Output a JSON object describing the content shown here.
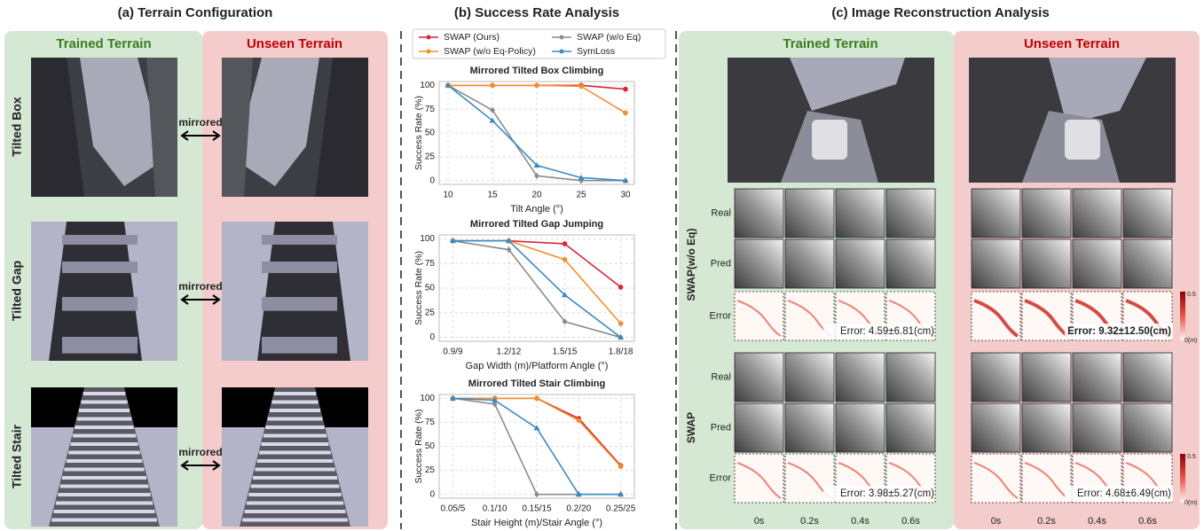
{
  "panel_a": {
    "title": "(a) Terrain Configuration",
    "trained": "Trained Terrain",
    "unseen": "Unseen Terrain",
    "rows": [
      "Tilted Box",
      "Tilted Gap",
      "Tilted Stair"
    ],
    "arrow_label": "mirrored"
  },
  "panel_b": {
    "title": "(b) Success Rate Analysis"
  },
  "chart_data": [
    {
      "type": "line",
      "title": "Mirrored Tilted Box Climbing",
      "x_label": "Tilt Angle (°)",
      "y_label": "Success Rate (%)",
      "x": [
        10,
        15,
        20,
        25,
        30
      ],
      "xlim": [
        9,
        31
      ],
      "xticks": [
        10,
        15,
        20,
        25,
        30
      ],
      "ylim": [
        -4,
        104
      ],
      "yticks": [
        0,
        25,
        50,
        75,
        100
      ],
      "grid": true,
      "series": [
        {
          "name": "SWAP (Ours)",
          "color": "#d62738",
          "marker": "circle",
          "values": [
            100,
            100,
            100,
            100,
            96
          ]
        },
        {
          "name": "SWAP (w/o Eq-Policy)",
          "color": "#f28e2b",
          "marker": "circle",
          "values": [
            100,
            100,
            100,
            99,
            71
          ]
        },
        {
          "name": "SWAP (w/o Eq)",
          "color": "#8c8c8c",
          "marker": "diamond",
          "values": [
            100,
            74,
            5,
            0,
            0
          ]
        },
        {
          "name": "SymLoss",
          "color": "#3a8bc2",
          "marker": "triangle",
          "values": [
            100,
            63,
            16,
            3,
            0
          ]
        }
      ]
    },
    {
      "type": "line",
      "title": "Mirrored Tilted Gap Jumping",
      "x_label": "Gap Width (m)/Platform Angle (°)",
      "y_label": "Success Rate (%)",
      "categories": [
        "0.9/9",
        "1.2/12",
        "1.5/15",
        "1.8/18"
      ],
      "ylim": [
        -4,
        104
      ],
      "yticks": [
        0,
        25,
        50,
        75,
        100
      ],
      "grid": true,
      "series": [
        {
          "name": "SWAP (Ours)",
          "color": "#d62738",
          "marker": "circle",
          "values": [
            98,
            98,
            95,
            51
          ]
        },
        {
          "name": "SWAP (w/o Eq-Policy)",
          "color": "#f28e2b",
          "marker": "circle",
          "values": [
            98,
            98,
            79,
            14
          ]
        },
        {
          "name": "SWAP (w/o Eq)",
          "color": "#8c8c8c",
          "marker": "diamond",
          "values": [
            98,
            89,
            16,
            0
          ]
        },
        {
          "name": "SymLoss",
          "color": "#3a8bc2",
          "marker": "triangle",
          "values": [
            98,
            98,
            43,
            0
          ]
        }
      ]
    },
    {
      "type": "line",
      "title": "Mirrored Tilted Stair Climbing",
      "x_label": "Stair Height (m)/Stair Angle (°)",
      "y_label": "Success Rate (%)",
      "categories": [
        "0.05/5",
        "0.1/10",
        "0.15/15",
        "0.2/20",
        "0.25/25"
      ],
      "ylim": [
        -4,
        104
      ],
      "yticks": [
        0,
        25,
        50,
        75,
        100
      ],
      "grid": true,
      "series": [
        {
          "name": "SWAP (Ours)",
          "color": "#d62738",
          "marker": "circle",
          "values": [
            100,
            100,
            100,
            79,
            30
          ]
        },
        {
          "name": "SWAP (w/o Eq-Policy)",
          "color": "#f28e2b",
          "marker": "circle",
          "values": [
            100,
            100,
            100,
            77,
            29
          ]
        },
        {
          "name": "SWAP (w/o Eq)",
          "color": "#8c8c8c",
          "marker": "diamond",
          "values": [
            100,
            94,
            0,
            0,
            0
          ]
        },
        {
          "name": "SymLoss",
          "color": "#3a8bc2",
          "marker": "triangle",
          "values": [
            100,
            98,
            69,
            0,
            0
          ]
        }
      ]
    }
  ],
  "panel_c": {
    "title": "(c) Image Reconstruction Analysis",
    "trained": "Trained Terrain",
    "unseen": "Unseen Terrain",
    "row_labels": [
      "Real",
      "Pred",
      "Error"
    ],
    "groups": [
      "SWAP(w/o Eq)",
      "SWAP"
    ],
    "times": [
      "0s",
      "0.2s",
      "0.4s",
      "0.6s"
    ],
    "errors": [
      [
        "Error: 4.59±6.81(cm)",
        "Error: 9.32±12.50(cm)"
      ],
      [
        "Error: 3.98±5.27(cm)",
        "Error: 4.68±6.49(cm)"
      ]
    ],
    "colorbar": [
      "0.5",
      "0(m)"
    ]
  }
}
